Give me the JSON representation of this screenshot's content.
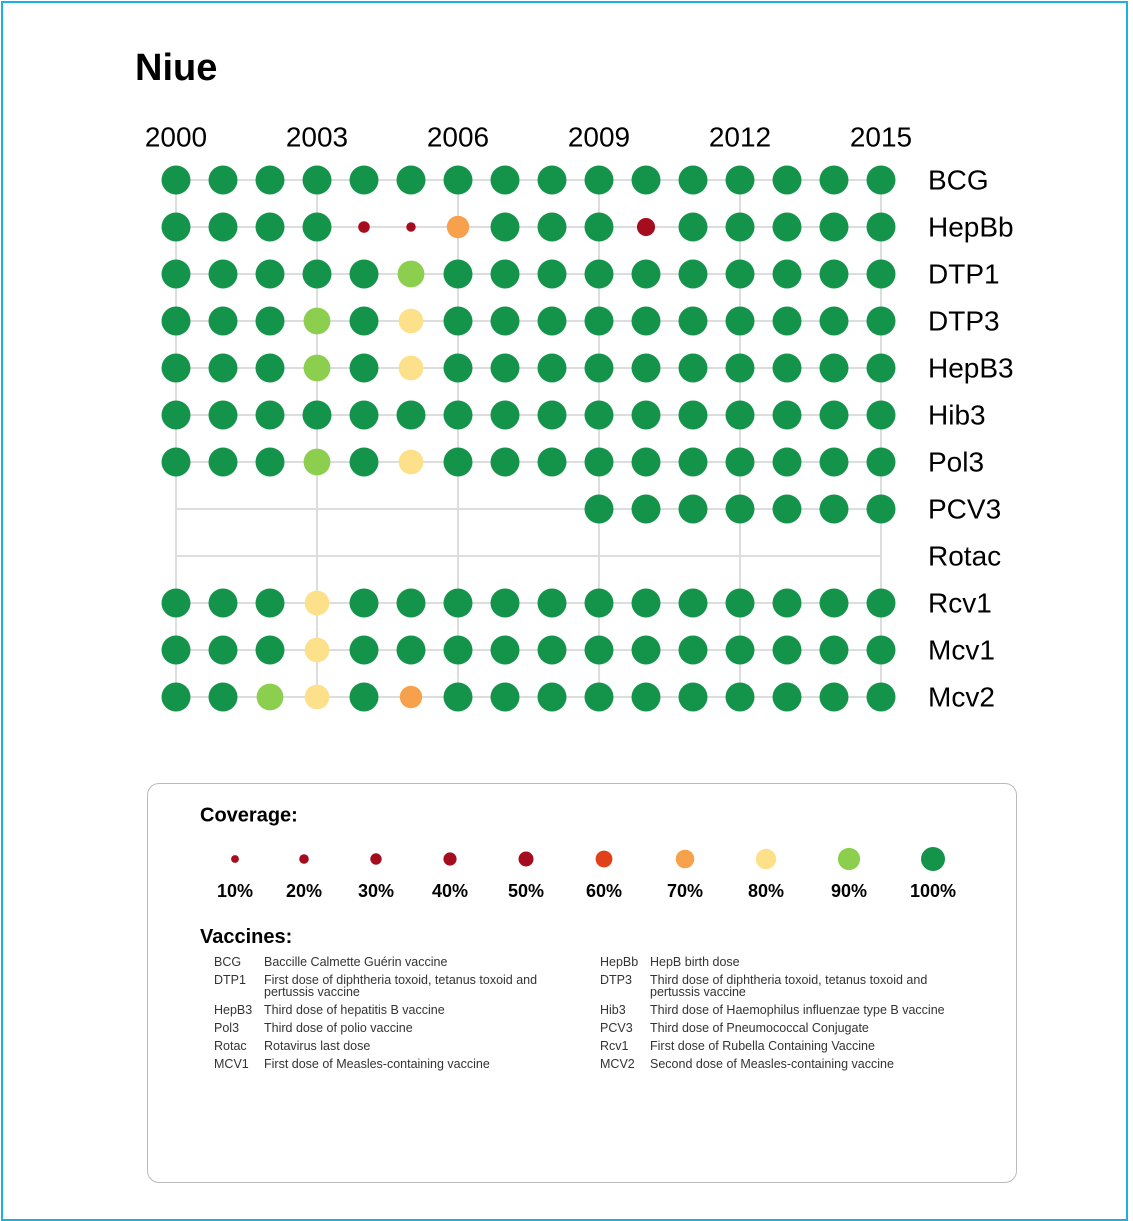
{
  "chart_data": {
    "type": "dot-matrix",
    "title": "Niue",
    "x": [
      2000,
      2001,
      2002,
      2003,
      2004,
      2005,
      2006,
      2007,
      2008,
      2009,
      2010,
      2011,
      2012,
      2013,
      2014,
      2015
    ],
    "xlim": [
      2000,
      2015
    ],
    "xticks": [
      2000,
      2003,
      2006,
      2009,
      2012,
      2015
    ],
    "grid": true,
    "series": [
      {
        "name": "BCG",
        "values": [
          100,
          100,
          100,
          100,
          100,
          100,
          100,
          100,
          100,
          100,
          100,
          100,
          100,
          100,
          100,
          100
        ]
      },
      {
        "name": "HepBb",
        "values": [
          100,
          100,
          100,
          100,
          20,
          10,
          70,
          100,
          100,
          100,
          50,
          100,
          100,
          100,
          100,
          100
        ]
      },
      {
        "name": "DTP1",
        "values": [
          100,
          100,
          100,
          100,
          100,
          90,
          100,
          100,
          100,
          100,
          100,
          100,
          100,
          100,
          100,
          100
        ]
      },
      {
        "name": "DTP3",
        "values": [
          100,
          100,
          100,
          90,
          100,
          80,
          100,
          100,
          100,
          100,
          100,
          100,
          100,
          100,
          100,
          100
        ]
      },
      {
        "name": "HepB3",
        "values": [
          100,
          100,
          100,
          90,
          100,
          80,
          100,
          100,
          100,
          100,
          100,
          100,
          100,
          100,
          100,
          100
        ]
      },
      {
        "name": "Hib3",
        "values": [
          100,
          100,
          100,
          100,
          100,
          100,
          100,
          100,
          100,
          100,
          100,
          100,
          100,
          100,
          100,
          100
        ]
      },
      {
        "name": "Pol3",
        "values": [
          100,
          100,
          100,
          90,
          100,
          80,
          100,
          100,
          100,
          100,
          100,
          100,
          100,
          100,
          100,
          100
        ]
      },
      {
        "name": "PCV3",
        "values": [
          null,
          null,
          null,
          null,
          null,
          null,
          null,
          null,
          null,
          100,
          100,
          100,
          100,
          100,
          100,
          100
        ]
      },
      {
        "name": "Rotac",
        "values": [
          null,
          null,
          null,
          null,
          null,
          null,
          null,
          null,
          null,
          null,
          null,
          null,
          null,
          null,
          null,
          null
        ]
      },
      {
        "name": "Rcv1",
        "values": [
          100,
          100,
          100,
          80,
          100,
          100,
          100,
          100,
          100,
          100,
          100,
          100,
          100,
          100,
          100,
          100
        ]
      },
      {
        "name": "Mcv1",
        "values": [
          100,
          100,
          100,
          80,
          100,
          100,
          100,
          100,
          100,
          100,
          100,
          100,
          100,
          100,
          100,
          100
        ]
      },
      {
        "name": "Mcv2",
        "values": [
          100,
          100,
          90,
          80,
          100,
          70,
          100,
          100,
          100,
          100,
          100,
          100,
          100,
          100,
          100,
          100
        ]
      }
    ],
    "legend": {
      "title": "Coverage:",
      "values": [
        10,
        20,
        30,
        40,
        50,
        60,
        70,
        80,
        90,
        100
      ],
      "value_labels": [
        "10%",
        "20%",
        "30%",
        "40%",
        "50%",
        "60%",
        "70%",
        "80%",
        "90%",
        "100%"
      ],
      "colors": [
        "#a50d1e",
        "#a50d1e",
        "#a50d1e",
        "#a50d1e",
        "#a50d1e",
        "#e0401a",
        "#f8a14c",
        "#fde08a",
        "#8ccf4f",
        "#14934a"
      ]
    },
    "glossary": {
      "title": "Vaccines:",
      "entries": [
        {
          "code": "BCG",
          "text": "Baccille Calmette Guérin vaccine"
        },
        {
          "code": "HepBb",
          "text": "HepB birth dose"
        },
        {
          "code": "DTP1",
          "text": "First dose of diphtheria toxoid, tetanus toxoid and pertussis vaccine"
        },
        {
          "code": "DTP3",
          "text": "Third dose of diphtheria toxoid, tetanus toxoid and pertussis vaccine"
        },
        {
          "code": "HepB3",
          "text": "Third dose of hepatitis B vaccine"
        },
        {
          "code": "Hib3",
          "text": "Third dose of Haemophilus influenzae type B vaccine"
        },
        {
          "code": "Pol3",
          "text": "Third dose of polio vaccine"
        },
        {
          "code": "PCV3",
          "text": "Third dose of Pneumococcal Conjugate"
        },
        {
          "code": "Rotac",
          "text": "Rotavirus last dose"
        },
        {
          "code": "Rcv1",
          "text": "First dose of Rubella Containing Vaccine"
        },
        {
          "code": "MCV1",
          "text": "First dose of Measles-containing vaccine"
        },
        {
          "code": "MCV2",
          "text": "Second dose of Measles-containing vaccine"
        }
      ]
    }
  }
}
